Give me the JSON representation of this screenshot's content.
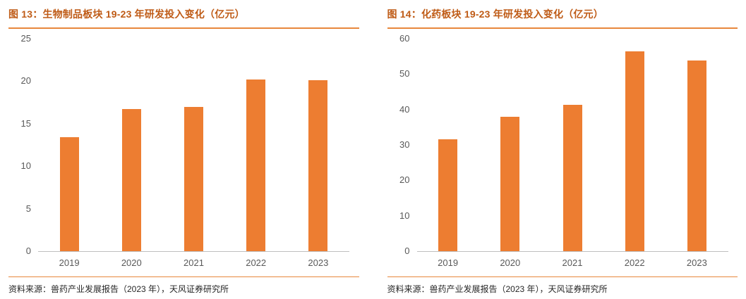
{
  "colors": {
    "bar": "#ED7D31",
    "title_text": "#BF5B16",
    "rule": "#E8873C",
    "axis_text": "#595959",
    "axis_line": "#BFBFBF",
    "source_text": "#262626"
  },
  "chart_data": [
    {
      "type": "bar",
      "title": "图 13：生物制品板块 19-23 年研发投入变化（亿元）",
      "categories": [
        "2019",
        "2020",
        "2021",
        "2022",
        "2023"
      ],
      "values": [
        13.4,
        16.7,
        17.0,
        20.2,
        20.1
      ],
      "ylim": [
        0,
        25
      ],
      "yticks": [
        0,
        5,
        10,
        15,
        20,
        25
      ],
      "xlabel": "",
      "ylabel": "",
      "grid": false,
      "legend": "none",
      "source": "资料来源：兽药产业发展报告（2023 年），天风证券研究所"
    },
    {
      "type": "bar",
      "title": "图 14：化药板块 19-23 年研发投入变化（亿元）",
      "categories": [
        "2019",
        "2020",
        "2021",
        "2022",
        "2023"
      ],
      "values": [
        31.5,
        38.0,
        41.3,
        56.5,
        53.8
      ],
      "ylim": [
        0,
        60
      ],
      "yticks": [
        0,
        10,
        20,
        30,
        40,
        50,
        60
      ],
      "xlabel": "",
      "ylabel": "",
      "grid": false,
      "legend": "none",
      "source": "资料来源：兽药产业发展报告（2023 年），天风证券研究所"
    }
  ]
}
